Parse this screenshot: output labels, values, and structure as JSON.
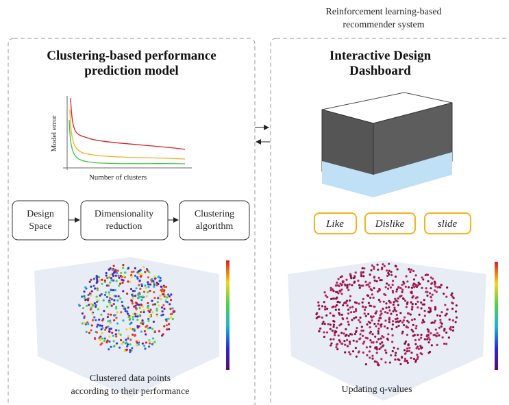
{
  "header": {
    "lines": [
      "Reinforcement learning-based",
      "recommender system"
    ]
  },
  "left_panel": {
    "title_lines": [
      "Clustering-based performance",
      "prediction model"
    ],
    "chart": {
      "y_label": "Model error",
      "x_label": "Number of clusters"
    },
    "steps": [
      [
        "Design",
        "Space"
      ],
      [
        "Dimensionality",
        "reduction"
      ],
      [
        "Clustering",
        "algorithm"
      ]
    ],
    "caption_lines": [
      "Clustered data points",
      "according to their performance"
    ]
  },
  "right_panel": {
    "title_lines": [
      "Interactive Design",
      "Dashboard"
    ],
    "buttons": [
      "Like",
      "Dislike",
      "slide"
    ],
    "caption": "Updating q-values"
  }
}
